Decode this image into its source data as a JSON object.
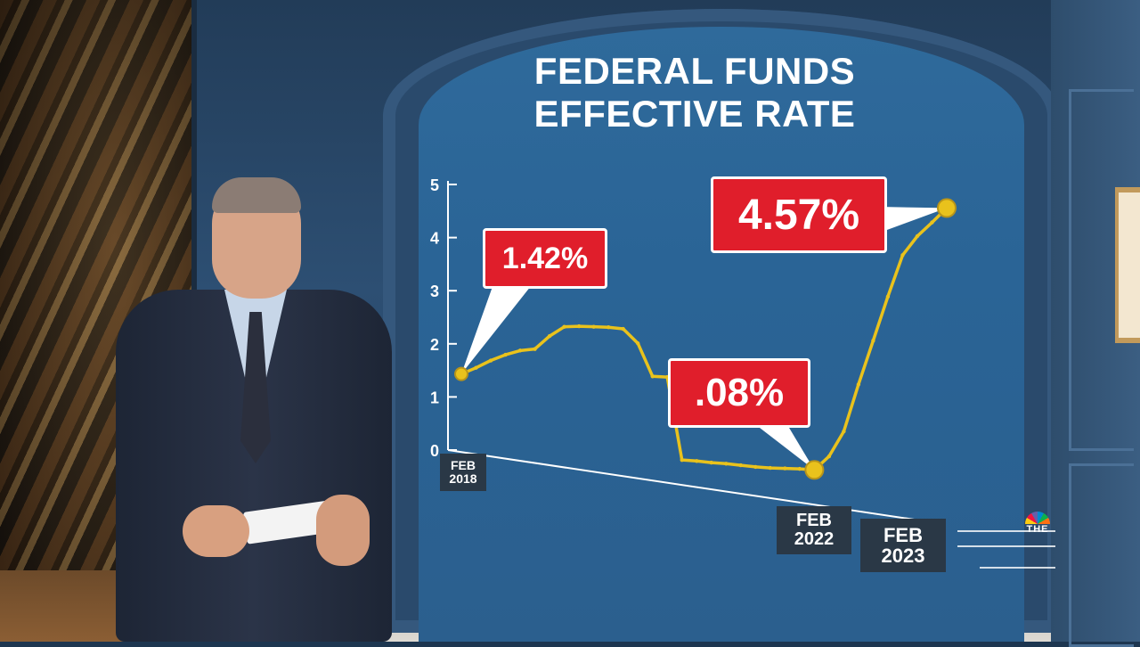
{
  "chart_data": {
    "type": "line",
    "title": "FEDERAL FUNDS EFFECTIVE RATE",
    "title_lines": [
      "FEDERAL FUNDS",
      "EFFECTIVE RATE"
    ],
    "y_ticks": [
      "0",
      "1",
      "2",
      "3",
      "4",
      "5"
    ],
    "ylim": [
      0,
      5
    ],
    "x_labels": [
      {
        "lines": [
          "FEB",
          "2018"
        ]
      },
      {
        "lines": [
          "FEB",
          "2022"
        ]
      },
      {
        "lines": [
          "FEB",
          "2023"
        ]
      }
    ],
    "series": [
      {
        "values": [
          1.42,
          1.55,
          1.7,
          1.82,
          1.91,
          1.95,
          2.2,
          2.38,
          2.4,
          2.4,
          2.4,
          2.38,
          2.13,
          1.55,
          1.55,
          0.09,
          0.09,
          0.08,
          0.08,
          0.07,
          0.06,
          0.06,
          0.07,
          0.08,
          0.08,
          0.33,
          0.77,
          1.58,
          2.33,
          3.08,
          3.78,
          4.1,
          4.33,
          4.57
        ]
      }
    ],
    "annotations": [
      {
        "label": "1.42%",
        "point_index": 0
      },
      {
        "label": ".08%",
        "point_index": 24
      },
      {
        "label": "4.57%",
        "point_index": 33
      }
    ],
    "line_color": "#e9c21c",
    "callout_color": "#e01e2b",
    "grid": false
  },
  "network_logo": {
    "text": "THE",
    "icon": "peacock-icon"
  }
}
